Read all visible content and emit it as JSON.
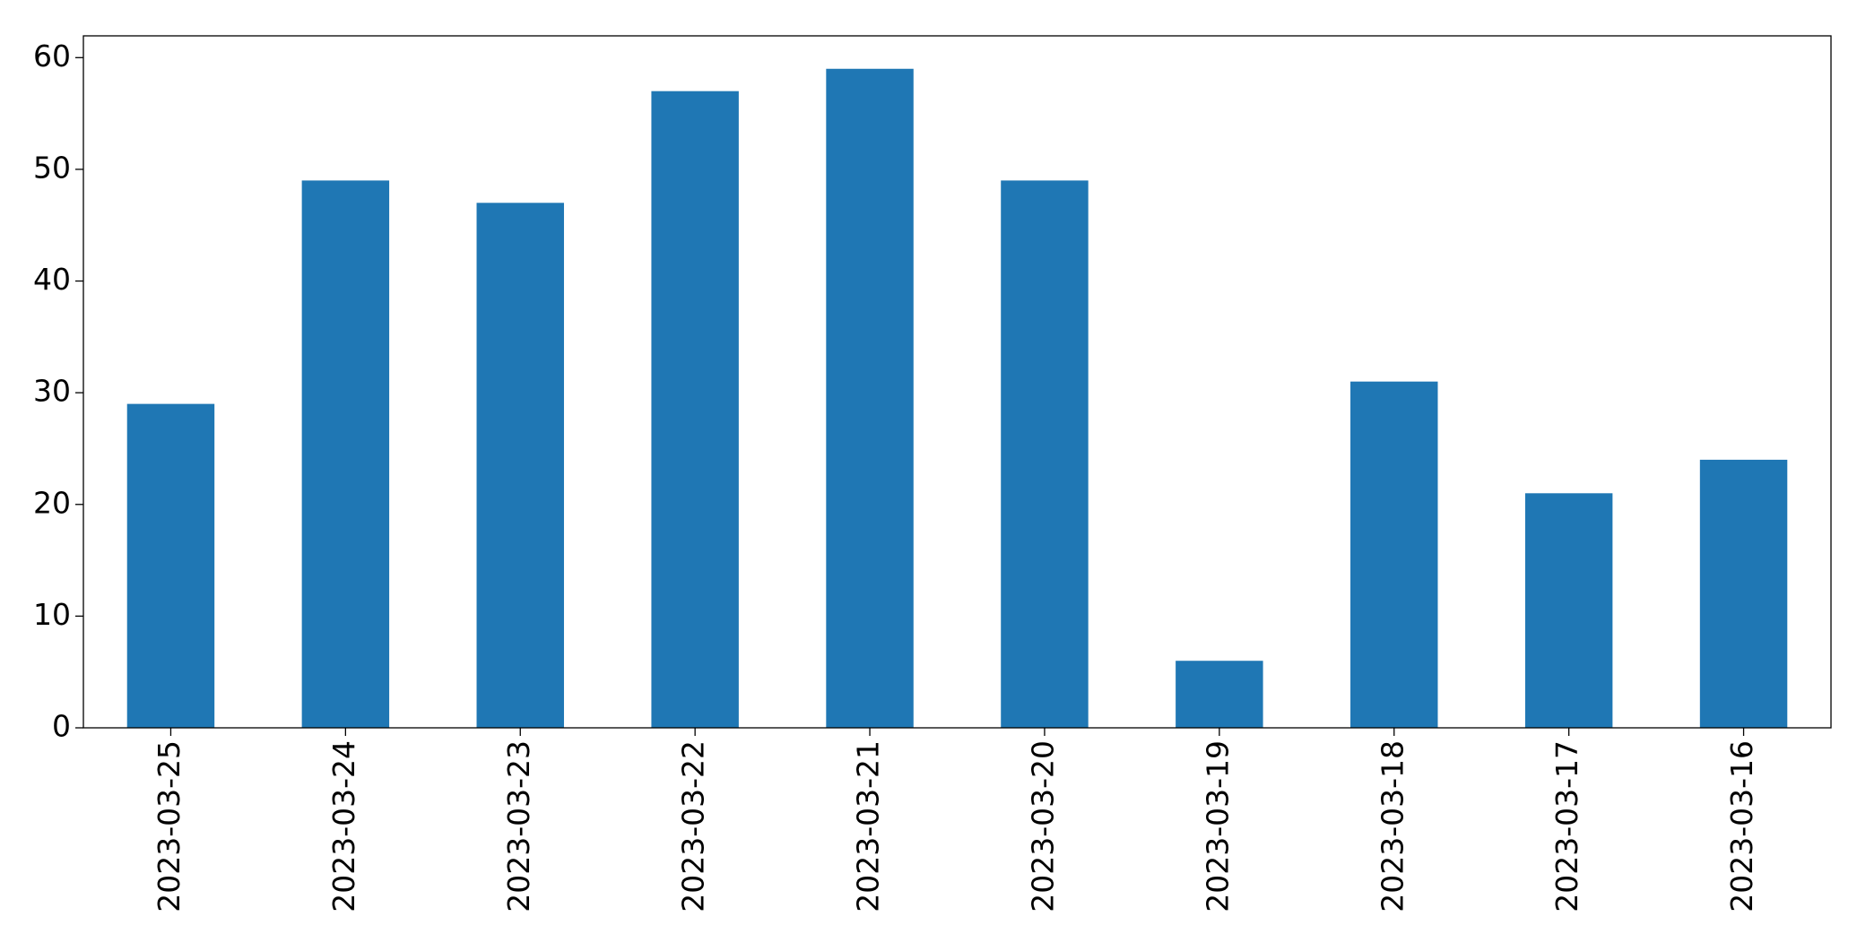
{
  "chart_data": {
    "type": "bar",
    "categories": [
      "2023-03-25",
      "2023-03-24",
      "2023-03-23",
      "2023-03-22",
      "2023-03-21",
      "2023-03-20",
      "2023-03-19",
      "2023-03-18",
      "2023-03-17",
      "2023-03-16"
    ],
    "values": [
      29,
      49,
      47,
      57,
      59,
      49,
      6,
      31,
      21,
      24
    ],
    "color": "#1f77b4",
    "ylim": [
      0,
      61.95
    ],
    "yticks": [
      0,
      10,
      20,
      30,
      40,
      50,
      60
    ],
    "grid": false
  }
}
